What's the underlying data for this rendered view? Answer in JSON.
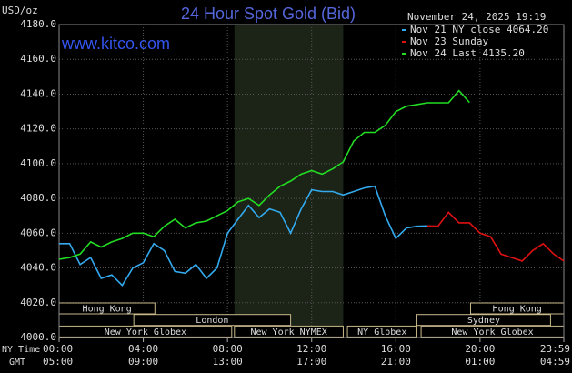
{
  "chart_data": {
    "type": "line",
    "title": "24 Hour Spot Gold (Bid)",
    "source": "www.kitco.com",
    "timestamp": "November 24, 2025 19:19",
    "y_label": "USD/oz",
    "x_row_labels": [
      "NY Time",
      "GMT"
    ],
    "grid": true,
    "legend": "top-right",
    "ylim": [
      4000,
      4180
    ],
    "yticks": [
      {
        "value": 4000,
        "label": "4000.0"
      },
      {
        "value": 4020,
        "label": "4020.0"
      },
      {
        "value": 4040,
        "label": "4040.0"
      },
      {
        "value": 4060,
        "label": "4060.0"
      },
      {
        "value": 4080,
        "label": "4080.0"
      },
      {
        "value": 4100,
        "label": "4100.0"
      },
      {
        "value": 4120,
        "label": "4120.0"
      },
      {
        "value": 4140,
        "label": "4140.0"
      },
      {
        "value": 4160,
        "label": "4160.0"
      },
      {
        "value": 4180,
        "label": "4180.0"
      }
    ],
    "xlim": [
      0,
      23.98
    ],
    "xticks": [
      {
        "value": 0,
        "label": "00:00"
      },
      {
        "value": 4,
        "label": "04:00"
      },
      {
        "value": 8,
        "label": "08:00"
      },
      {
        "value": 12,
        "label": "12:00"
      },
      {
        "value": 16,
        "label": "16:00"
      },
      {
        "value": 20,
        "label": "20:00"
      },
      {
        "value": 23.98,
        "label": "23:59"
      }
    ],
    "gmt_labels": [
      "05:00",
      "09:00",
      "13:00",
      "17:00",
      "21:00",
      "01:00",
      "04:59"
    ],
    "sessions": [
      {
        "label": "Hong Kong",
        "row": 0,
        "start": 0,
        "end": 4.55
      },
      {
        "label": "Hong Kong",
        "row": 0,
        "start": 19.55,
        "end": 23.98
      },
      {
        "label": "London",
        "row": 1,
        "start": 3.55,
        "end": 11
      },
      {
        "label": "Sydney",
        "row": 1,
        "start": 17,
        "end": 23.35
      },
      {
        "label": "New York Globex",
        "row": 2,
        "start": 0,
        "end": 8.2
      },
      {
        "label": "New York NYMEX",
        "row": 2,
        "start": 8.33,
        "end": 13.5,
        "shaded": true
      },
      {
        "label": "NY Globex",
        "row": 2,
        "start": 13.7,
        "end": 17
      },
      {
        "label": "New York Globex",
        "row": 2,
        "start": 17.2,
        "end": 23.98
      }
    ],
    "x": [
      0,
      0.5,
      1,
      1.5,
      2,
      2.5,
      3,
      3.5,
      4,
      4.5,
      5,
      5.5,
      6,
      6.5,
      7,
      7.5,
      8,
      8.5,
      9,
      9.5,
      10,
      10.5,
      11,
      11.5,
      12,
      12.5,
      13,
      13.5,
      14,
      14.5,
      15,
      15.5,
      16,
      16.5,
      17,
      17.5,
      18,
      18.5,
      19,
      19.5,
      20,
      20.5,
      21,
      21.5,
      22,
      22.5,
      23,
      23.5,
      23.98
    ],
    "series": [
      {
        "name": "Nov 21 NY close 4064.20",
        "color": "#33aaee",
        "values": [
          4054,
          4054,
          4042,
          4046,
          4034,
          4036,
          4030,
          4040,
          4043,
          4054,
          4050,
          4038,
          4037,
          4042,
          4034,
          4040,
          4060,
          4068,
          4076,
          4069,
          4074,
          4072,
          4060,
          4074,
          4085,
          4084,
          4084,
          4082,
          4084,
          4086,
          4087,
          4070,
          4057,
          4063,
          4064,
          4064.2,
          null,
          null,
          null,
          null,
          null,
          null,
          null,
          null,
          null,
          null,
          null,
          null,
          null
        ]
      },
      {
        "name": "Nov 23 Sunday",
        "color": "#dd1111",
        "values": [
          null,
          null,
          null,
          null,
          null,
          null,
          null,
          null,
          null,
          null,
          null,
          null,
          null,
          null,
          null,
          null,
          null,
          null,
          null,
          null,
          null,
          null,
          null,
          null,
          null,
          null,
          null,
          null,
          null,
          null,
          null,
          null,
          null,
          null,
          null,
          4064.2,
          4064,
          4072,
          4066,
          4066,
          4060,
          4058,
          4048,
          4046,
          4044,
          4050,
          4054,
          4048,
          4044
        ]
      },
      {
        "name": "Nov 24 Last 4135.20",
        "color": "#22dd22",
        "values": [
          4045,
          4046,
          4048,
          4055,
          4052,
          4055,
          4057,
          4060,
          4060,
          4058,
          4064,
          4068,
          4063,
          4066,
          4067,
          4070,
          4073,
          4078,
          4080,
          4076,
          4082,
          4087,
          4090,
          4094,
          4096,
          4094,
          4097,
          4101,
          4113,
          4118,
          4118,
          4122,
          4130,
          4133,
          4134,
          4135,
          4135,
          4135,
          4142,
          4135.2,
          null,
          null,
          null,
          null,
          null,
          null,
          null,
          null,
          null
        ]
      }
    ]
  }
}
